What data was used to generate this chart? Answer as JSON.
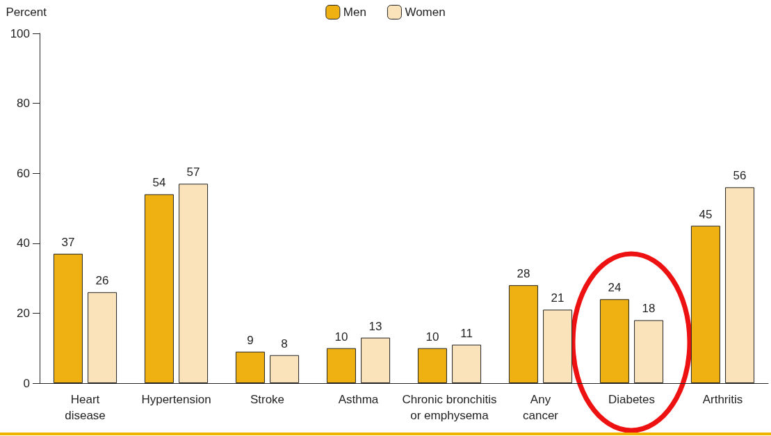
{
  "chart_data": {
    "type": "bar",
    "ylabel": "Percent",
    "categories": [
      "Heart\ndisease",
      "Hypertension",
      "Stroke",
      "Asthma",
      "Chronic bronchitis\nor emphysema",
      "Any\ncancer",
      "Diabetes",
      "Arthritis"
    ],
    "series": [
      {
        "name": "Men",
        "color": "#eeb111",
        "values": [
          37,
          54,
          9,
          10,
          10,
          28,
          24,
          45
        ]
      },
      {
        "name": "Women",
        "color": "#fae3bb",
        "values": [
          26,
          57,
          8,
          13,
          11,
          21,
          18,
          56
        ]
      }
    ],
    "ylim": [
      0,
      100
    ],
    "yticks": [
      0,
      20,
      40,
      60,
      80,
      100
    ],
    "grid": false,
    "legend": "top",
    "data_labels": true
  }
}
